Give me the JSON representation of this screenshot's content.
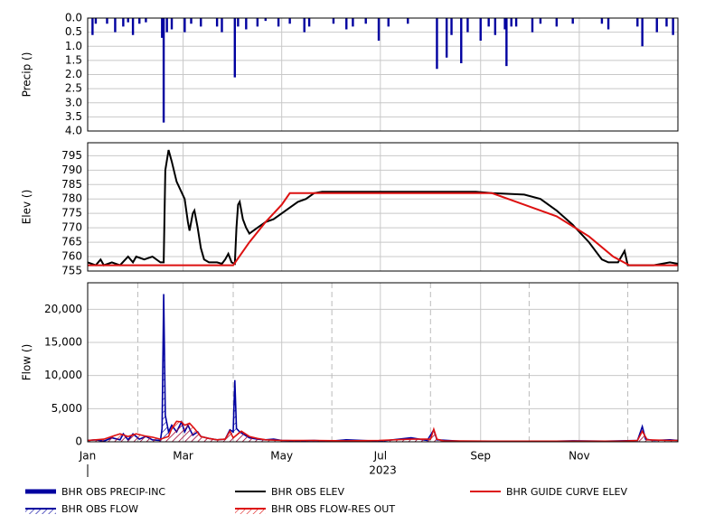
{
  "chart_data": [
    {
      "type": "bar",
      "ylabel": "Precip ()",
      "ylim": [
        0,
        4
      ],
      "y_reversed": true,
      "yticks": [
        {
          "value": 0,
          "label": "0.0"
        },
        {
          "value": 0.5,
          "label": "0.5"
        },
        {
          "value": 1,
          "label": "1.0"
        },
        {
          "value": 1.5,
          "label": "1.5"
        },
        {
          "value": 2,
          "label": "2.0"
        },
        {
          "value": 2.5,
          "label": "2.5"
        },
        {
          "value": 3,
          "label": "3.0"
        },
        {
          "value": 3.5,
          "label": "3.5"
        },
        {
          "value": 4,
          "label": "4.0"
        }
      ],
      "xlim": [
        0,
        365
      ],
      "grid": true,
      "series": [
        {
          "name": "BHR OBS PRECIP-INC",
          "color": "#0000a0",
          "x": [
            3,
            5,
            12,
            17,
            22,
            25,
            28,
            32,
            36,
            46,
            47,
            49,
            52,
            60,
            64,
            70,
            80,
            83,
            91,
            93,
            98,
            105,
            110,
            118,
            125,
            134,
            137,
            152,
            160,
            164,
            172,
            180,
            186,
            198,
            216,
            222,
            225,
            231,
            235,
            243,
            248,
            252,
            258,
            259,
            262,
            265,
            275,
            280,
            290,
            300,
            318,
            322,
            340,
            343,
            352,
            358,
            362
          ],
          "values": [
            0.6,
            0.2,
            0.2,
            0.5,
            0.3,
            0.15,
            0.6,
            0.2,
            0.15,
            0.7,
            3.7,
            0.5,
            0.4,
            0.5,
            0.2,
            0.3,
            0.3,
            0.5,
            2.1,
            0.3,
            0.4,
            0.3,
            0.1,
            0.3,
            0.2,
            0.5,
            0.3,
            0.2,
            0.4,
            0.3,
            0.2,
            0.8,
            0.3,
            0.2,
            1.8,
            1.4,
            0.6,
            1.6,
            0.5,
            0.8,
            0.3,
            0.6,
            0.4,
            1.7,
            0.3,
            0.3,
            0.5,
            0.2,
            0.3,
            0.2,
            0.2,
            0.4,
            0.3,
            1.0,
            0.5,
            0.3,
            0.6
          ]
        }
      ]
    },
    {
      "type": "line",
      "ylabel": "Elev ()",
      "ylim": [
        755,
        799.5
      ],
      "yticks": [
        755,
        760,
        765,
        770,
        775,
        780,
        785,
        790,
        795
      ],
      "xlim": [
        0,
        365
      ],
      "grid": true,
      "series": [
        {
          "name": "BHR OBS ELEV",
          "color": "#000000",
          "x": [
            0,
            5,
            8,
            10,
            15,
            20,
            25,
            28,
            30,
            35,
            40,
            45,
            47,
            48,
            50,
            52,
            55,
            60,
            62,
            63,
            65,
            66,
            68,
            70,
            72,
            75,
            80,
            83,
            85,
            87,
            89,
            91,
            92,
            93,
            94,
            96,
            98,
            100,
            105,
            110,
            115,
            120,
            125,
            130,
            135,
            140,
            145,
            150,
            240,
            250,
            270,
            280,
            290,
            300,
            310,
            318,
            322,
            328,
            332,
            334,
            340,
            350,
            360,
            365
          ],
          "values": [
            758,
            757,
            759,
            757,
            758,
            757,
            760,
            758,
            760,
            759,
            760,
            758,
            758,
            790,
            797,
            793,
            786,
            780,
            772,
            769,
            775,
            776,
            770,
            763,
            759,
            758,
            758,
            757.5,
            759,
            761,
            758,
            757.5,
            770,
            778,
            779,
            773,
            770,
            768,
            770,
            772,
            773,
            775,
            777,
            779,
            780,
            782,
            782.5,
            782.5,
            782.5,
            782,
            781.5,
            780,
            776,
            771,
            765,
            759,
            758,
            758,
            762,
            757,
            757,
            757,
            758,
            757.5
          ]
        },
        {
          "name": "BHR GUIDE CURVE ELEV",
          "color": "#dd1111",
          "x": [
            0,
            90,
            100,
            110,
            120,
            125,
            250,
            270,
            290,
            310,
            325,
            335,
            365
          ],
          "values": [
            757,
            757,
            765,
            772,
            778,
            782,
            782,
            778,
            774,
            767,
            760,
            757,
            757
          ]
        }
      ]
    },
    {
      "type": "area",
      "ylabel": "Flow ()",
      "ylim": [
        0,
        24000
      ],
      "yticks": [
        0,
        {
          "value": 5000,
          "label": "5,000"
        },
        {
          "value": 10000,
          "label": "10,000"
        },
        {
          "value": 15000,
          "label": "15,000"
        },
        {
          "value": 20000,
          "label": "20,000"
        }
      ],
      "xlim": [
        0,
        365
      ],
      "grid": true,
      "xlabel": "2023",
      "xticks": [
        {
          "value": 0,
          "label": "Jan"
        },
        {
          "value": 59,
          "label": "Mar"
        },
        {
          "value": 120,
          "label": "May"
        },
        {
          "value": 181,
          "label": "Jul"
        },
        {
          "value": 243,
          "label": "Sep"
        },
        {
          "value": 304,
          "label": "Nov"
        }
      ],
      "xminorticks": [
        31,
        90,
        151,
        212,
        273,
        334
      ],
      "series": [
        {
          "name": "BHR OBS FLOW",
          "color": "#0000a0",
          "x": [
            0,
            5,
            10,
            15,
            20,
            22,
            25,
            28,
            32,
            36,
            40,
            45,
            46,
            47,
            48,
            50,
            52,
            55,
            58,
            60,
            62,
            65,
            68,
            70,
            75,
            80,
            85,
            88,
            90,
            91,
            92,
            94,
            96,
            100,
            105,
            110,
            115,
            120,
            130,
            140,
            150,
            160,
            170,
            180,
            185,
            200,
            210,
            214,
            216,
            230,
            250,
            270,
            290,
            300,
            320,
            340,
            343,
            345,
            350,
            360,
            365
          ],
          "values": [
            200,
            300,
            100,
            600,
            300,
            1200,
            300,
            1200,
            400,
            800,
            300,
            200,
            2000,
            22300,
            4000,
            1500,
            2500,
            1500,
            3000,
            1500,
            2500,
            1000,
            1500,
            800,
            500,
            300,
            400,
            1800,
            1500,
            9300,
            2000,
            1500,
            1200,
            600,
            400,
            300,
            400,
            200,
            150,
            200,
            100,
            300,
            200,
            100,
            200,
            600,
            200,
            1800,
            300,
            100,
            100,
            100,
            100,
            150,
            100,
            200,
            2300,
            400,
            200,
            300,
            200
          ]
        },
        {
          "name": "BHR OBS FLOW-RES OUT",
          "color": "#dd1111",
          "x": [
            0,
            10,
            15,
            20,
            25,
            30,
            35,
            40,
            45,
            50,
            52,
            55,
            58,
            60,
            63,
            66,
            70,
            75,
            80,
            85,
            88,
            90,
            95,
            100,
            105,
            110,
            120,
            140,
            160,
            180,
            200,
            212,
            214,
            216,
            220,
            250,
            280,
            300,
            330,
            340,
            343,
            346,
            360,
            365
          ],
          "values": [
            200,
            400,
            800,
            1200,
            800,
            1200,
            900,
            700,
            400,
            800,
            2000,
            3100,
            3000,
            2500,
            2800,
            2000,
            800,
            500,
            300,
            400,
            1600,
            600,
            1600,
            800,
            500,
            300,
            200,
            200,
            150,
            200,
            400,
            400,
            1900,
            400,
            150,
            100,
            100,
            100,
            100,
            200,
            1600,
            300,
            200,
            200
          ]
        }
      ]
    }
  ]
}
